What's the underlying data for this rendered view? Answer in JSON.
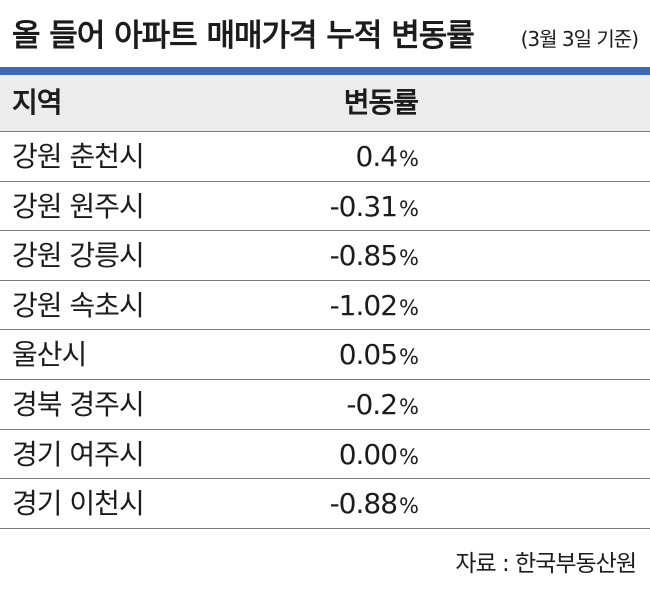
{
  "header": {
    "title": "올 들어 아파트 매매가격 누적 변동률",
    "subtitle": "(3월 3일 기준)"
  },
  "table": {
    "columns": [
      "지역",
      "변동률"
    ],
    "rows": [
      {
        "region": "강원 춘천시",
        "value": "0.4",
        "unit": "%"
      },
      {
        "region": "강원 원주시",
        "value": "-0.31",
        "unit": "%"
      },
      {
        "region": "강원 강릉시",
        "value": "-0.85",
        "unit": "%"
      },
      {
        "region": "강원 속초시",
        "value": "-1.02",
        "unit": "%"
      },
      {
        "region": "울산시",
        "value": "0.05",
        "unit": "%"
      },
      {
        "region": "경북 경주시",
        "value": "-0.2",
        "unit": "%"
      },
      {
        "region": "경기 여주시",
        "value": "0.00",
        "unit": "%"
      },
      {
        "region": "경기 이천시",
        "value": "-0.88",
        "unit": "%"
      }
    ]
  },
  "footer": {
    "source": "자료 : 한국부동산원"
  },
  "colors": {
    "accent_rule": "#3d6bb0",
    "header_bg": "#ececed",
    "text": "#1c1c1c"
  }
}
